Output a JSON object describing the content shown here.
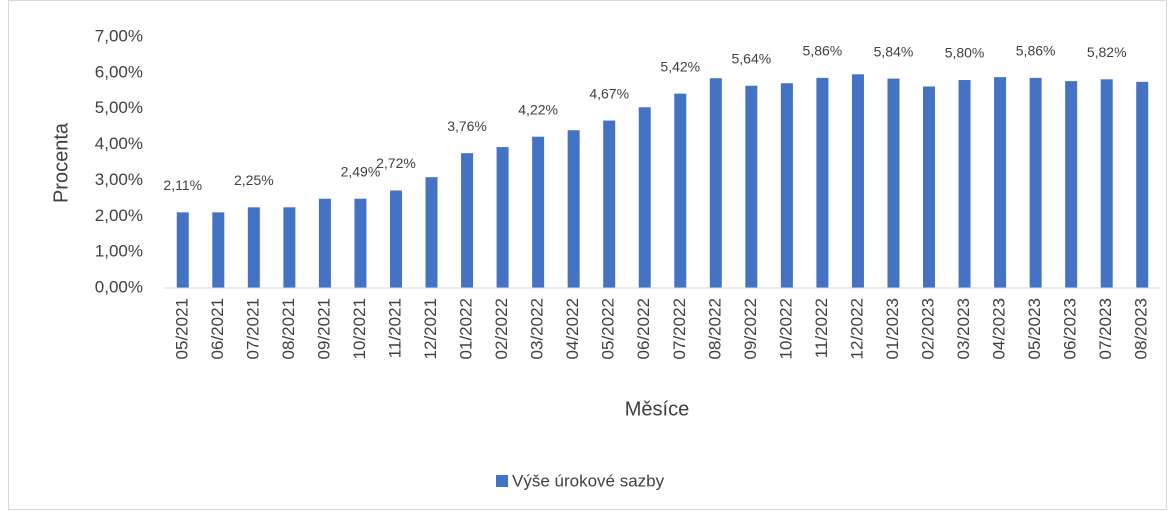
{
  "chart_data": {
    "type": "bar",
    "xlabel": "Měsíce",
    "ylabel": "Procenta",
    "categories": [
      "05/2021",
      "06/2021",
      "07/2021",
      "08/2021",
      "09/2021",
      "10/2021",
      "11/2021",
      "12/2021",
      "01/2022",
      "02/2022",
      "03/2022",
      "04/2022",
      "05/2022",
      "06/2022",
      "07/2022",
      "08/2022",
      "09/2022",
      "10/2022",
      "11/2022",
      "12/2022",
      "01/2023",
      "02/2023",
      "03/2023",
      "04/2023",
      "05/2023",
      "06/2023",
      "07/2023",
      "08/2023"
    ],
    "series": [
      {
        "name": "Výše úrokové sazby",
        "color": "#4472c4",
        "values": [
          2.11,
          2.11,
          2.25,
          2.25,
          2.49,
          2.49,
          2.72,
          3.09,
          3.76,
          3.93,
          4.22,
          4.4,
          4.67,
          5.04,
          5.42,
          5.85,
          5.64,
          5.71,
          5.86,
          5.96,
          5.84,
          5.62,
          5.8,
          5.88,
          5.86,
          5.77,
          5.82,
          5.75
        ],
        "value_labels": [
          "2,11%",
          null,
          "2,25%",
          null,
          null,
          "2,49%",
          "2,72%",
          null,
          "3,76%",
          null,
          "4,22%",
          null,
          "4,67%",
          null,
          "5,42%",
          null,
          "5,64%",
          null,
          "5,86%",
          null,
          "5,84%",
          null,
          "5,80%",
          null,
          "5,86%",
          null,
          "5,82%",
          null
        ]
      }
    ],
    "ylim": [
      0,
      7
    ],
    "yticks": [
      {
        "value": 0,
        "label": "0,00%"
      },
      {
        "value": 1,
        "label": "1,00%"
      },
      {
        "value": 2,
        "label": "2,00%"
      },
      {
        "value": 3,
        "label": "3,00%"
      },
      {
        "value": 4,
        "label": "4,00%"
      },
      {
        "value": 5,
        "label": "5,00%"
      },
      {
        "value": 6,
        "label": "6,00%"
      },
      {
        "value": 7,
        "label": "7,00%"
      }
    ],
    "grid": false,
    "legend": "bottom"
  }
}
